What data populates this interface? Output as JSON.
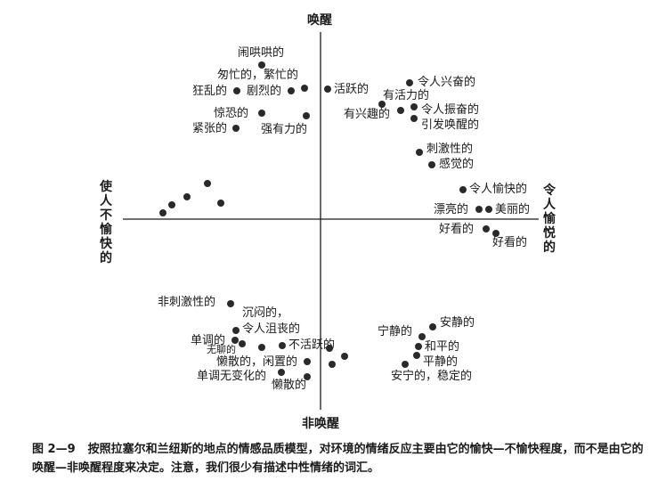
{
  "figure": {
    "axes": {
      "top": "唤醒",
      "bottom": "非唤醒",
      "left": "使人不愉快的",
      "right": "令人愉悦的"
    },
    "items": [
      {
        "id": "naohonghong",
        "text": "闹哄哄的"
      },
      {
        "id": "congmang",
        "text": "匆忙的，繁忙的"
      },
      {
        "id": "kuangluan",
        "text": "狂乱的"
      },
      {
        "id": "julie",
        "text": "剧烈的"
      },
      {
        "id": "jingkong",
        "text": "惊恐的"
      },
      {
        "id": "jinzhang",
        "text": "紧张的"
      },
      {
        "id": "qiangyouli",
        "text": "强有力的"
      },
      {
        "id": "huoyue",
        "text": "活跃的"
      },
      {
        "id": "lingrenxingfen",
        "text": "令人兴奋的"
      },
      {
        "id": "youhuoli",
        "text": "有活力的"
      },
      {
        "id": "youxingqu",
        "text": "有兴趣的"
      },
      {
        "id": "lingrenzhenfen",
        "text": "令人振奋的"
      },
      {
        "id": "yinfahuanxing",
        "text": "引发唤醒的"
      },
      {
        "id": "cijixing",
        "text": "刺激性的"
      },
      {
        "id": "gandjue",
        "text": "感觉的"
      },
      {
        "id": "lingrenyukuai",
        "text": "令人愉快的"
      },
      {
        "id": "piaoliang",
        "text": "漂亮的"
      },
      {
        "id": "meili",
        "text": "美丽的"
      },
      {
        "id": "haokan1",
        "text": "好看的"
      },
      {
        "id": "haokan2",
        "text": "好看的"
      },
      {
        "id": "feicijixing",
        "text": "非刺激性的"
      },
      {
        "id": "chenmen",
        "text": "沉闷的，"
      },
      {
        "id": "lingrenjusang",
        "text": "令人沮丧的"
      },
      {
        "id": "dandiao",
        "text": "单调的"
      },
      {
        "id": "wuliao",
        "text": "无聊的"
      },
      {
        "id": "buhuoyue",
        "text": "不活跃的"
      },
      {
        "id": "lansan1",
        "text": "懒散的，闲置的"
      },
      {
        "id": "dandiaowubianhua",
        "text": "单调无变化的"
      },
      {
        "id": "lansan2",
        "text": "懒散的"
      },
      {
        "id": "anjing",
        "text": "安静的"
      },
      {
        "id": "ningjing",
        "text": "宁静的"
      },
      {
        "id": "heping",
        "text": "和平的"
      },
      {
        "id": "pingjing",
        "text": "平静的"
      },
      {
        "id": "anning",
        "text": "安宁的，稳定的"
      }
    ]
  },
  "caption": {
    "number": "图 2—9",
    "text": "按照拉塞尔和兰纽斯的地点的情感品质模型，对环境的情绪反应主要由它的愉快—不愉快程度，而不是由它的唤醒—非唤醒程度来决定。注意，我们很少有描述中性情绪的词汇。"
  }
}
